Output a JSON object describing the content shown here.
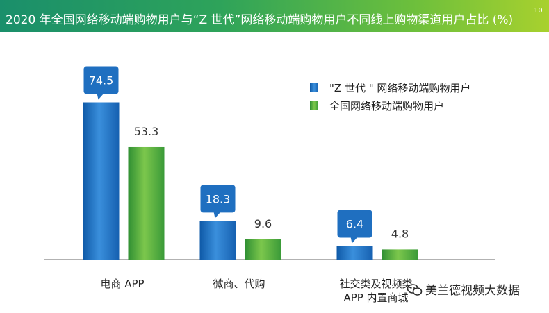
{
  "title": {
    "text": "2020 年全国网络移动端购物用户与“Z 世代”网络移动端购物用户不同线上购物渠道用户占比 (%)",
    "superscript": "10"
  },
  "colors": {
    "series_z": "#1f6fc0",
    "series_all": "#48a83c",
    "callout": "#1f6fc0",
    "axis": "#666666"
  },
  "watermark": {
    "text": "美兰德视频大数据",
    "icon": "wechat-icon"
  },
  "chart_data": {
    "type": "bar",
    "categories": [
      "电商 APP",
      "微商、代购",
      "社交类及视频类\nAPP 内置商城"
    ],
    "series": [
      {
        "name": "\"Z 世代 \" 网络移动端购物用户",
        "values": [
          74.5,
          18.3,
          6.4
        ]
      },
      {
        "name": "全国网络移动端购物用户",
        "values": [
          53.3,
          9.6,
          4.8
        ]
      }
    ],
    "ylim": [
      0,
      100
    ],
    "grid": false,
    "legend": "top-right"
  }
}
